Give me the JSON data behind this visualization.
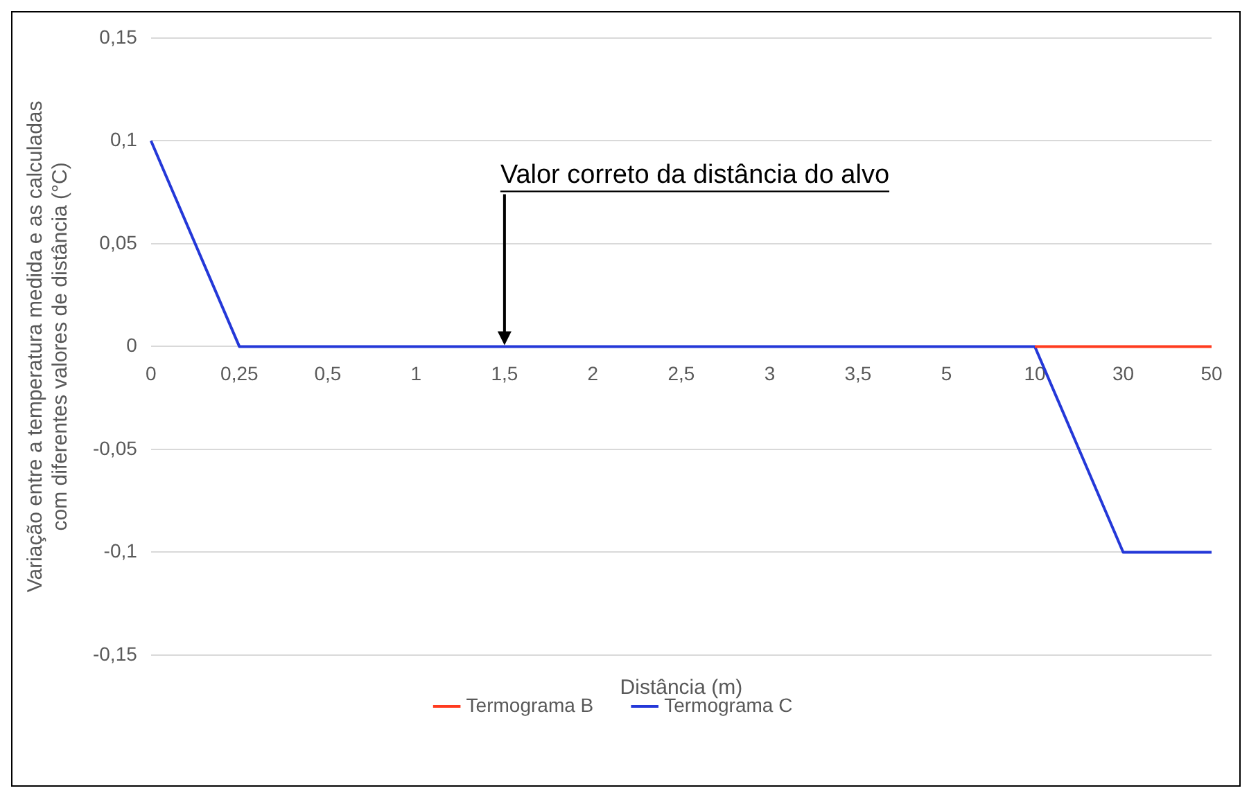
{
  "chart_data": {
    "type": "line",
    "xlabel": "Distância (m)",
    "ylabel": "Variação entre a temperatura medida e as calculadas com diferentes valores de distância (°C)",
    "categories": [
      "0",
      "0,25",
      "0,5",
      "1",
      "1,5",
      "2",
      "2,5",
      "3",
      "3,5",
      "5",
      "10",
      "30",
      "50"
    ],
    "series": [
      {
        "name": "Termograma B",
        "color": "#ff3b1f",
        "values": [
          null,
          null,
          null,
          null,
          null,
          null,
          null,
          null,
          null,
          null,
          0,
          0,
          0
        ]
      },
      {
        "name": "Termograma C",
        "color": "#2438d8",
        "values": [
          0.1,
          0,
          0,
          0,
          0,
          0,
          0,
          0,
          0,
          0,
          0,
          -0.1,
          -0.1
        ]
      }
    ],
    "ylim": [
      -0.15,
      0.15
    ],
    "yticks": [
      {
        "value": -0.15,
        "label": "-0,15"
      },
      {
        "value": -0.1,
        "label": "-0,1"
      },
      {
        "value": -0.05,
        "label": "-0,05"
      },
      0,
      {
        "value": 0.05,
        "label": "0,05"
      },
      {
        "value": 0.1,
        "label": "0,1"
      },
      {
        "value": 0.15,
        "label": "0,15"
      }
    ],
    "grid": "y",
    "legend": "bottom",
    "marker": "none",
    "line_style": "solid",
    "annotations": [
      {
        "text": "Valor correto da distância do alvo",
        "x": "1,5",
        "y": 0
      }
    ]
  }
}
